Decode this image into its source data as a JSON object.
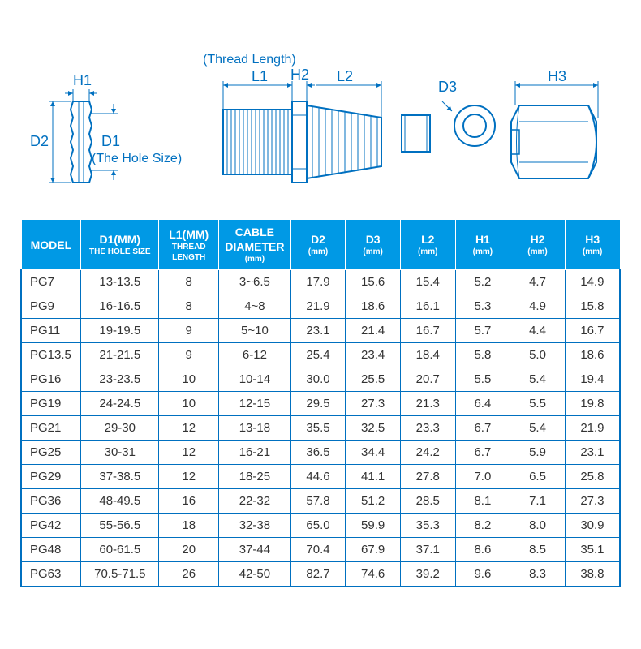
{
  "diagram": {
    "line_color": "#0070c0",
    "labels": {
      "thread_length": "(Thread Length)",
      "hole_size": "(The Hole Size)",
      "H1": "H1",
      "H2": "H2",
      "H3": "H3",
      "D1": "D1",
      "D2": "D2",
      "D3": "D3",
      "L1": "L1",
      "L2": "L2"
    }
  },
  "table": {
    "header_bg": "#0099e5",
    "header_fg": "#ffffff",
    "border_color": "#0070c0",
    "columns": [
      {
        "main": "MODEL",
        "sub": ""
      },
      {
        "main": "D1(MM)",
        "sub": "THE HOLE SIZE"
      },
      {
        "main": "L1(MM)",
        "sub": "THREAD LENGTH"
      },
      {
        "main": "CABLE DIAMETER",
        "sub": "(mm)"
      },
      {
        "main": "D2",
        "sub": "(mm)"
      },
      {
        "main": "D3",
        "sub": "(mm)"
      },
      {
        "main": "L2",
        "sub": "(mm)"
      },
      {
        "main": "H1",
        "sub": "(mm)"
      },
      {
        "main": "H2",
        "sub": "(mm)"
      },
      {
        "main": "H3",
        "sub": "(mm)"
      }
    ],
    "rows": [
      [
        "PG7",
        "13-13.5",
        "8",
        "3~6.5",
        "17.9",
        "15.6",
        "15.4",
        "5.2",
        "4.7",
        "14.9"
      ],
      [
        "PG9",
        "16-16.5",
        "8",
        "4~8",
        "21.9",
        "18.6",
        "16.1",
        "5.3",
        "4.9",
        "15.8"
      ],
      [
        "PG11",
        "19-19.5",
        "9",
        "5~10",
        "23.1",
        "21.4",
        "16.7",
        "5.7",
        "4.4",
        "16.7"
      ],
      [
        "PG13.5",
        "21-21.5",
        "9",
        "6-12",
        "25.4",
        "23.4",
        "18.4",
        "5.8",
        "5.0",
        "18.6"
      ],
      [
        "PG16",
        "23-23.5",
        "10",
        "10-14",
        "30.0",
        "25.5",
        "20.7",
        "5.5",
        "5.4",
        "19.4"
      ],
      [
        "PG19",
        "24-24.5",
        "10",
        "12-15",
        "29.5",
        "27.3",
        "21.3",
        "6.4",
        "5.5",
        "19.8"
      ],
      [
        "PG21",
        "29-30",
        "12",
        "13-18",
        "35.5",
        "32.5",
        "23.3",
        "6.7",
        "5.4",
        "21.9"
      ],
      [
        "PG25",
        "30-31",
        "12",
        "16-21",
        "36.5",
        "34.4",
        "24.2",
        "6.7",
        "5.9",
        "23.1"
      ],
      [
        "PG29",
        "37-38.5",
        "12",
        "18-25",
        "44.6",
        "41.1",
        "27.8",
        "7.0",
        "6.5",
        "25.8"
      ],
      [
        "PG36",
        "48-49.5",
        "16",
        "22-32",
        "57.8",
        "51.2",
        "28.5",
        "8.1",
        "7.1",
        "27.3"
      ],
      [
        "PG42",
        "55-56.5",
        "18",
        "32-38",
        "65.0",
        "59.9",
        "35.3",
        "8.2",
        "8.0",
        "30.9"
      ],
      [
        "PG48",
        "60-61.5",
        "20",
        "37-44",
        "70.4",
        "67.9",
        "37.1",
        "8.6",
        "8.5",
        "35.1"
      ],
      [
        "PG63",
        "70.5-71.5",
        "26",
        "42-50",
        "82.7",
        "74.6",
        "39.2",
        "9.6",
        "8.3",
        "38.8"
      ]
    ]
  }
}
